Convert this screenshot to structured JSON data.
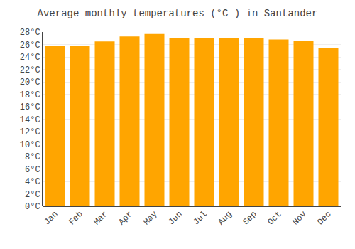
{
  "chart_data": {
    "type": "bar",
    "title": "Average monthly temperatures (°C ) in Santander",
    "categories": [
      "Jan",
      "Feb",
      "Mar",
      "Apr",
      "May",
      "Jun",
      "Jul",
      "Aug",
      "Sep",
      "Oct",
      "Nov",
      "Dec"
    ],
    "values": [
      25.8,
      25.8,
      26.5,
      27.3,
      27.7,
      27.1,
      27.0,
      27.0,
      27.0,
      26.8,
      26.6,
      25.5
    ],
    "color": "#FFA500",
    "ylim": [
      0,
      28
    ],
    "yticks": [
      {
        "value": 0,
        "label": "0°C"
      },
      {
        "value": 2,
        "label": "2°C"
      },
      {
        "value": 4,
        "label": "4°C"
      },
      {
        "value": 6,
        "label": "6°C"
      },
      {
        "value": 8,
        "label": "8°C"
      },
      {
        "value": 10,
        "label": "10°C"
      },
      {
        "value": 12,
        "label": "12°C"
      },
      {
        "value": 14,
        "label": "14°C"
      },
      {
        "value": 16,
        "label": "16°C"
      },
      {
        "value": 18,
        "label": "18°C"
      },
      {
        "value": 20,
        "label": "20°C"
      },
      {
        "value": 22,
        "label": "22°C"
      },
      {
        "value": 24,
        "label": "24°C"
      },
      {
        "value": 26,
        "label": "26°C"
      },
      {
        "value": 28,
        "label": "28°C"
      }
    ],
    "grid": true
  }
}
